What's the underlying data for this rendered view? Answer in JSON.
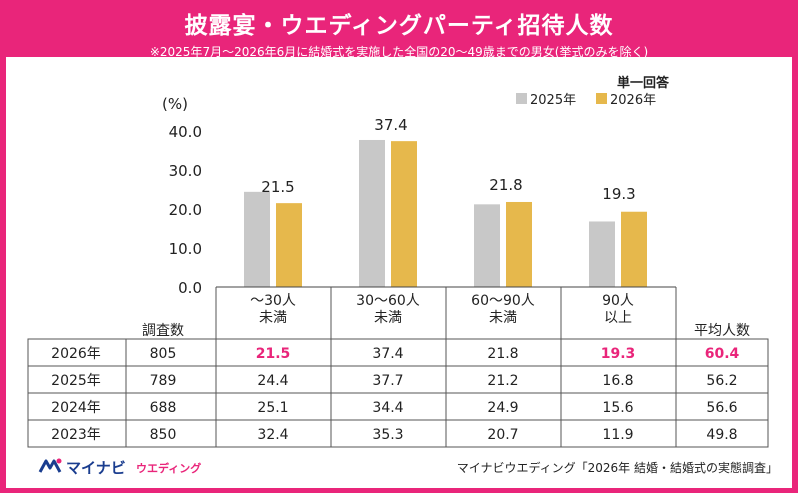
{
  "header": {
    "title": "披露宴・ウエディングパーティ招待人数",
    "subtitle": "※2025年7月～2026年6月に結婚式を実施した全国の20～49歳までの男女(挙式のみを除く)"
  },
  "colors": {
    "brand": "#e9257a",
    "series_2025": "#c8c8c8",
    "series_2026": "#e6b84c",
    "highlight": "#e9257a"
  },
  "chart_data": {
    "type": "bar",
    "ylabel": "(%)",
    "ylim": [
      0,
      40
    ],
    "yticks": [
      "40.0",
      "30.0",
      "20.0",
      "10.0",
      "0.0"
    ],
    "yticks_values": [
      40,
      30,
      20,
      10,
      0
    ],
    "grid": false,
    "legend_title": "単一回答",
    "legend_position": "top-right",
    "categories": [
      "～30人\n未満",
      "30～60人\n未満",
      "60～90人\n未満",
      "90人\n以上"
    ],
    "series": [
      {
        "name": "2025年",
        "color": "#c8c8c8",
        "values": [
          24.4,
          37.7,
          21.2,
          16.8
        ]
      },
      {
        "name": "2026年",
        "color": "#e6b84c",
        "values": [
          21.5,
          37.4,
          21.8,
          19.3
        ]
      }
    ],
    "data_labels": [
      "21.5",
      "37.4",
      "21.8",
      "19.3"
    ]
  },
  "table": {
    "count_header": "調査数",
    "avg_header": "平均人数",
    "rows": [
      {
        "year": "2026年",
        "count": "805",
        "values": [
          "21.5",
          "37.4",
          "21.8",
          "19.3"
        ],
        "avg": "60.4",
        "highlight": [
          true,
          false,
          false,
          true
        ],
        "avg_highlight": true
      },
      {
        "year": "2025年",
        "count": "789",
        "values": [
          "24.4",
          "37.7",
          "21.2",
          "16.8"
        ],
        "avg": "56.2",
        "highlight": [
          false,
          false,
          false,
          false
        ],
        "avg_highlight": false
      },
      {
        "year": "2024年",
        "count": "688",
        "values": [
          "25.1",
          "34.4",
          "24.9",
          "15.6"
        ],
        "avg": "56.6",
        "highlight": [
          false,
          false,
          false,
          false
        ],
        "avg_highlight": false
      },
      {
        "year": "2023年",
        "count": "850",
        "values": [
          "32.4",
          "35.3",
          "20.7",
          "11.9"
        ],
        "avg": "49.8",
        "highlight": [
          false,
          false,
          false,
          false
        ],
        "avg_highlight": false
      }
    ]
  },
  "footer": {
    "logo_text": "マイナビ",
    "logo_sub": "ウエディング",
    "source": "マイナビウエディング「2026年 結婚・結婚式の実態調査」"
  }
}
